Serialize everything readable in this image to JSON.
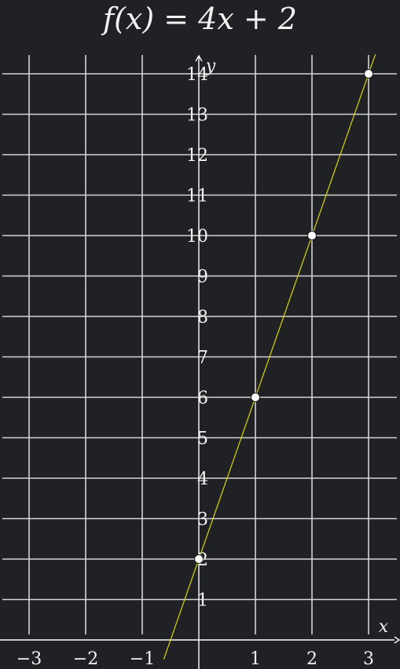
{
  "chart_data": {
    "type": "line",
    "title": "f(x) = 4x + 2",
    "xlabel": "x",
    "ylabel": "y",
    "xlim": [
      -3.5,
      3.5
    ],
    "ylim": [
      0,
      14.5
    ],
    "x_ticks": [
      -3,
      -2,
      -1,
      1,
      2,
      3
    ],
    "x_tick_labels": [
      "−3",
      "−2",
      "−1",
      "1",
      "2",
      "3"
    ],
    "y_ticks": [
      1,
      2,
      3,
      4,
      5,
      6,
      7,
      8,
      9,
      10,
      11,
      12,
      13,
      14
    ],
    "y_tick_labels": [
      "1",
      "2",
      "3",
      "4",
      "5",
      "6",
      "7",
      "8",
      "9",
      "10",
      "11",
      "12",
      "13",
      "14"
    ],
    "grid": true,
    "series": [
      {
        "function": {
          "slope": 4,
          "intercept": 2
        },
        "line_x": [
          -0.62,
          3.12
        ],
        "color": "#d8d800"
      }
    ],
    "points": [
      {
        "x": 0,
        "y": 2
      },
      {
        "x": 1,
        "y": 6
      },
      {
        "x": 2,
        "y": 10
      },
      {
        "x": 3,
        "y": 14
      }
    ],
    "colors": {
      "background": "#202124",
      "grid": "#d4d4d4",
      "axis": "#ffffff",
      "text": "#f2f2f2",
      "line": "#d8d800",
      "point": "#ffffff"
    }
  }
}
